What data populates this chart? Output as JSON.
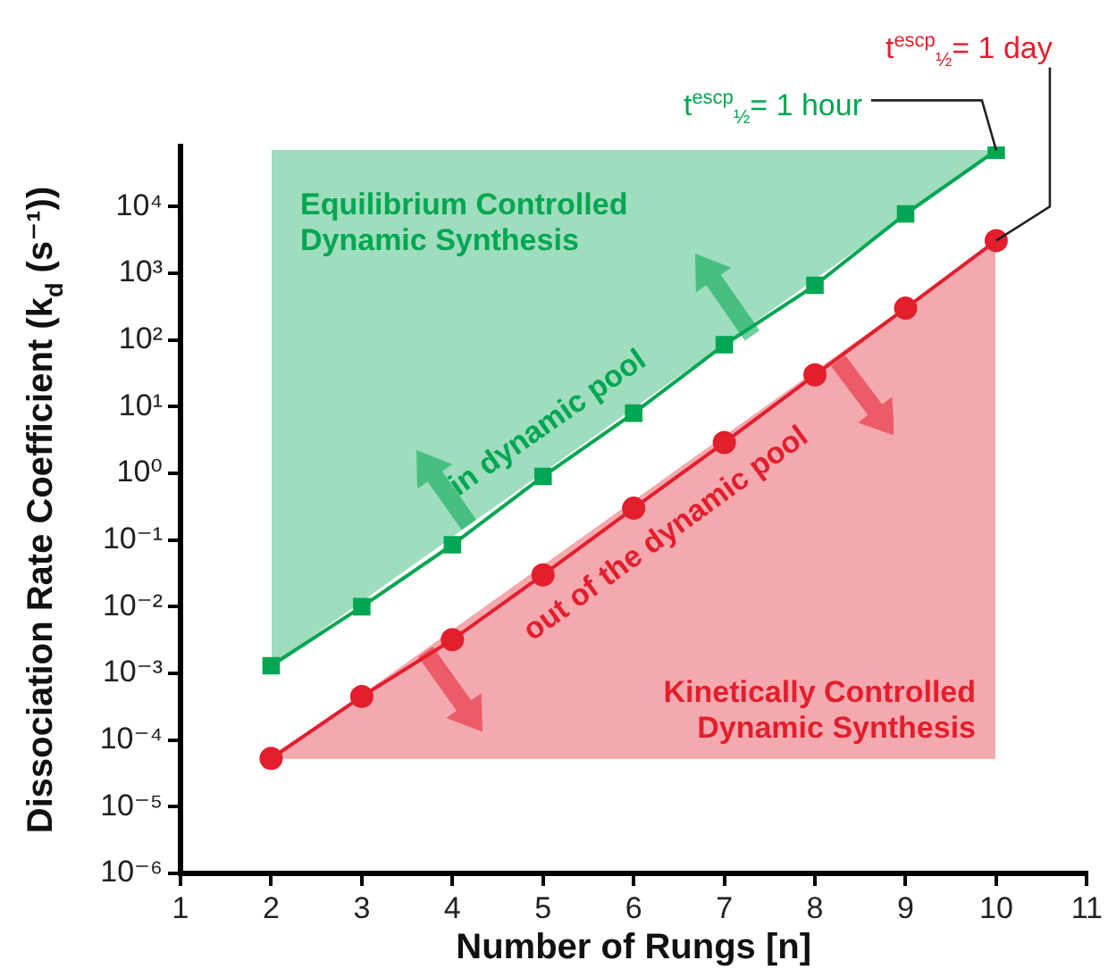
{
  "chart_data": {
    "type": "line",
    "xlabel": "Number of Rungs [n]",
    "ylabel": "Dissociation Rate Coefficient (k$_{d}$ (s⁻¹))",
    "x": [
      2,
      3,
      4,
      5,
      6,
      7,
      8,
      9,
      10
    ],
    "series": [
      {
        "color": "#00a651",
        "marker": "square",
        "values": [
          0.0013,
          0.01,
          0.085,
          0.9,
          8,
          85,
          660,
          7800,
          70000
        ]
      },
      {
        "color": "#e31e2d",
        "marker": "circle",
        "values": [
          5.3e-05,
          0.00045,
          0.0032,
          0.03,
          0.3,
          2.9,
          30,
          300,
          3100
        ]
      }
    ],
    "xlim": [
      1,
      11
    ],
    "xticks": [
      1,
      2,
      3,
      4,
      5,
      6,
      7,
      8,
      9,
      10,
      11
    ],
    "ylim": [
      1e-06,
      80000
    ],
    "log": true,
    "yticks": [
      {
        "value": 1e-06,
        "label": "10⁻⁶"
      },
      {
        "value": 1e-05,
        "label": "10⁻⁵"
      },
      {
        "value": 0.0001,
        "label": "10⁻⁴"
      },
      {
        "value": 0.001,
        "label": "10⁻³"
      },
      {
        "value": 0.01,
        "label": "10⁻²"
      },
      {
        "value": 0.1,
        "label": "10⁻¹"
      },
      {
        "value": 1,
        "label": "10⁰"
      },
      {
        "value": 10,
        "label": "10¹"
      },
      {
        "value": 100,
        "label": "10²"
      },
      {
        "value": 1000,
        "label": "10³"
      },
      {
        "value": 10000,
        "label": "10⁴"
      }
    ],
    "grid": false,
    "annotations": [
      "Equilibrium Controlled Dynamic Synthesis",
      "Kinetically Controlled Dynamic Synthesis",
      "in dynamic pool",
      "out of the dynamic pool",
      {
        "text": "t$^{escp}$$_{½}$= 1 hour",
        "x": 10,
        "y": 70000
      },
      {
        "text": "t$^{escp}$$_{½}$= 1 day",
        "x": 10,
        "y": 3100
      }
    ]
  }
}
